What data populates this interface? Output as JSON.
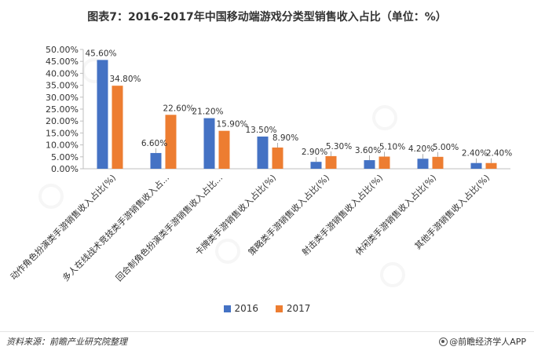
{
  "title": "图表7：2016-2017年中国移动端游戏分类型销售收入占比（单位：%）",
  "source": "资料来源：前瞻产业研究院整理",
  "brand": "@前瞻经济学人APP",
  "chart_data": {
    "type": "bar",
    "categories": [
      "动作角色扮演类手游销售收入占比(%)",
      "多人在线战术竞技类手游销售收入占...",
      "回合制角色扮演类手游销售收入占比...",
      "卡牌类手游销售收入占比(%)",
      "策略类手游销售收入占比(%)",
      "射击类手游销售收入占比(%)",
      "休闲类手游销售收入占比(%)",
      "其他手游销售收入占比(%)"
    ],
    "series": [
      {
        "name": "2016",
        "color": "#4472C4",
        "values": [
          45.6,
          6.6,
          21.2,
          13.5,
          2.9,
          3.6,
          4.2,
          2.4
        ],
        "labels": [
          "45.60%",
          "6.60%",
          "21.20%",
          "13.50%",
          "2.90%",
          "3.60%",
          "4.20%",
          "2.40%"
        ]
      },
      {
        "name": "2017",
        "color": "#ED7D31",
        "values": [
          34.8,
          22.6,
          15.9,
          8.9,
          5.3,
          5.1,
          5.0,
          2.4
        ],
        "labels": [
          "34.80%",
          "22.60%",
          "15.90%",
          "8.90%",
          "5.30%",
          "5.10%",
          "5.00%",
          "2.40%"
        ]
      }
    ],
    "y_ticks": [
      "0.00%",
      "5.00%",
      "10.00%",
      "15.00%",
      "20.00%",
      "25.00%",
      "30.00%",
      "35.00%",
      "40.00%",
      "45.00%",
      "50.00%"
    ],
    "ylim": [
      0,
      50
    ],
    "legend_position": "bottom",
    "grid": false
  }
}
